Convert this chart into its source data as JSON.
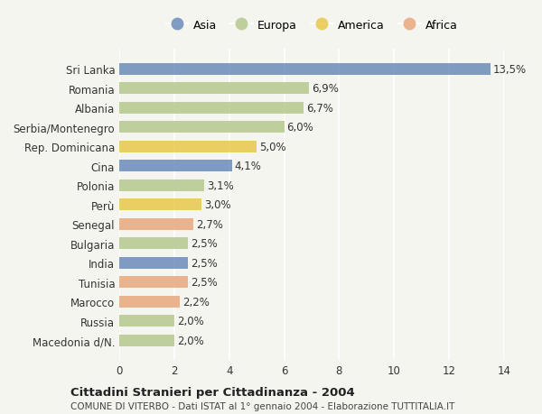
{
  "countries": [
    "Sri Lanka",
    "Romania",
    "Albania",
    "Serbia/Montenegro",
    "Rep. Dominicana",
    "Cina",
    "Polonia",
    "Perù",
    "Senegal",
    "Bulgaria",
    "India",
    "Tunisia",
    "Marocco",
    "Russia",
    "Macedonia d/N."
  ],
  "values": [
    13.5,
    6.9,
    6.7,
    6.0,
    5.0,
    4.1,
    3.1,
    3.0,
    2.7,
    2.5,
    2.5,
    2.5,
    2.2,
    2.0,
    2.0
  ],
  "labels": [
    "13,5%",
    "6,9%",
    "6,7%",
    "6,0%",
    "5,0%",
    "4,1%",
    "3,1%",
    "3,0%",
    "2,7%",
    "2,5%",
    "2,5%",
    "2,5%",
    "2,2%",
    "2,0%",
    "2,0%"
  ],
  "continents": [
    "Asia",
    "Europa",
    "Europa",
    "Europa",
    "America",
    "Asia",
    "Europa",
    "America",
    "Africa",
    "Europa",
    "Asia",
    "Africa",
    "Africa",
    "Europa",
    "Europa"
  ],
  "colors": {
    "Asia": "#6b8cba",
    "Europa": "#b5c98e",
    "America": "#e8c84a",
    "Africa": "#e8a87c"
  },
  "legend_order": [
    "Asia",
    "Europa",
    "America",
    "Africa"
  ],
  "title_main": "Cittadini Stranieri per Cittadinanza - 2004",
  "title_sub": "COMUNE DI VITERBO - Dati ISTAT al 1° gennaio 2004 - Elaborazione TUTTITALIA.IT",
  "xlim": [
    0,
    14
  ],
  "xticks": [
    0,
    2,
    4,
    6,
    8,
    10,
    12,
    14
  ],
  "background_color": "#f5f5f0",
  "bar_alpha": 0.85
}
